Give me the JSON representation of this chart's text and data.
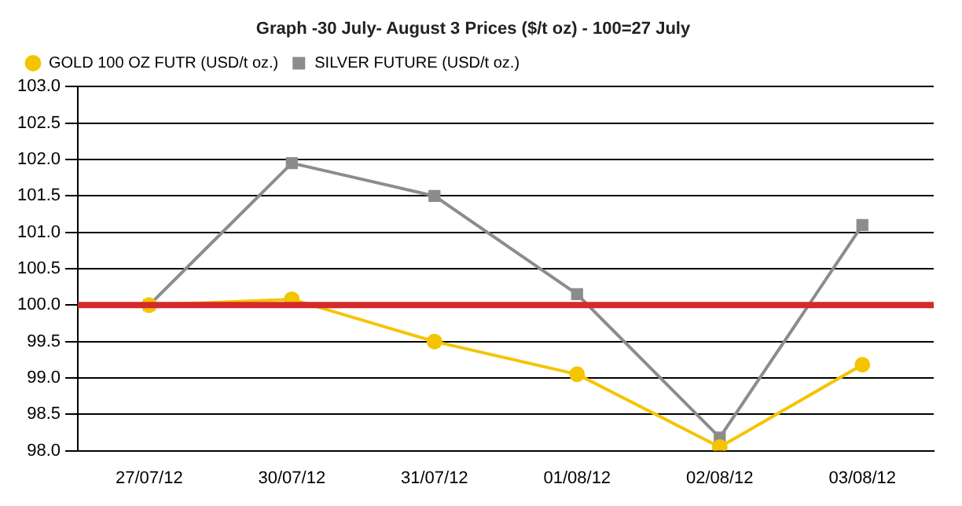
{
  "chart_data": {
    "type": "line",
    "title": "Graph -30 July- August 3 Prices ($/t oz) - 100=27 July",
    "categories": [
      "27/07/12",
      "30/07/12",
      "31/07/12",
      "01/08/12",
      "02/08/12",
      "03/08/12"
    ],
    "series": [
      {
        "name": "GOLD 100 OZ FUTR (USD/t oz.)",
        "color": "#f5c400",
        "marker": "circle",
        "values": [
          100.0,
          100.08,
          99.5,
          99.05,
          98.05,
          99.18
        ]
      },
      {
        "name": "SILVER FUTURE (USD/t oz.)",
        "color": "#8c8c8c",
        "marker": "square",
        "values": [
          100.0,
          101.95,
          101.5,
          100.15,
          98.18,
          101.1
        ]
      }
    ],
    "ylim": [
      98,
      103
    ],
    "yticks": [
      {
        "value": 98,
        "label": "98.0"
      },
      {
        "value": 98.5,
        "label": "98.5"
      },
      {
        "value": 99,
        "label": "99.0"
      },
      {
        "value": 99.5,
        "label": "99.5"
      },
      {
        "value": 100,
        "label": "100.0"
      },
      {
        "value": 100.5,
        "label": "100.5"
      },
      {
        "value": 101,
        "label": "101.0"
      },
      {
        "value": 101.5,
        "label": "101.5"
      },
      {
        "value": 102,
        "label": "102.0"
      },
      {
        "value": 102.5,
        "label": "102.5"
      },
      {
        "value": 103,
        "label": "103.0"
      }
    ],
    "ref_lines": [
      {
        "axis": "y",
        "value": 100,
        "color": "#d42a2a"
      }
    ],
    "grid": "y",
    "legend": "top left"
  }
}
